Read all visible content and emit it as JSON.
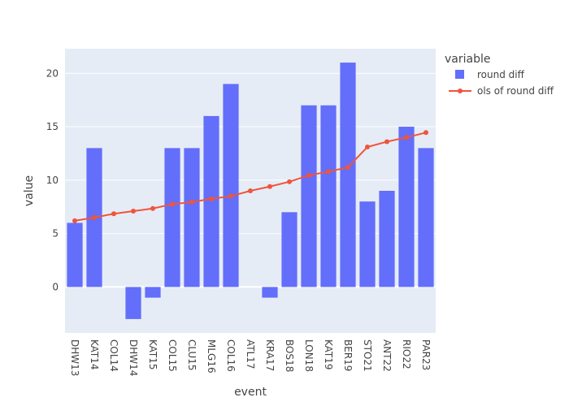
{
  "chart_data": {
    "type": "bar",
    "xlabel": "event",
    "ylabel": "value",
    "categories": [
      "DHW13",
      "KAT14",
      "COL14",
      "DHW14",
      "KAT15",
      "COL15",
      "CLU15",
      "MLG16",
      "COL16",
      "ATL17",
      "KRA17",
      "BOS18",
      "LON18",
      "KAT19",
      "BER19",
      "STO21",
      "ANT22",
      "RIO22",
      "PAR23"
    ],
    "ylim": [
      -4.3,
      22.3
    ],
    "yticks": [
      0,
      5,
      10,
      15,
      20
    ],
    "grid": true,
    "legend": {
      "title": "variable",
      "placement": "right"
    },
    "series": [
      {
        "name": "round diff",
        "kind": "bar",
        "color": "#636efa",
        "values": [
          6,
          13,
          0,
          -3,
          -1,
          13,
          13,
          16,
          19,
          0,
          -1,
          7,
          17,
          17,
          21,
          8,
          9,
          15,
          13
        ]
      },
      {
        "name": "ols of round diff",
        "kind": "line",
        "color": "#ef553b",
        "values": [
          6.2,
          6.5,
          6.85,
          7.1,
          7.35,
          7.75,
          7.95,
          8.25,
          8.5,
          9.0,
          9.4,
          9.85,
          10.45,
          10.8,
          11.2,
          13.1,
          13.6,
          14.0,
          14.45
        ]
      }
    ]
  }
}
